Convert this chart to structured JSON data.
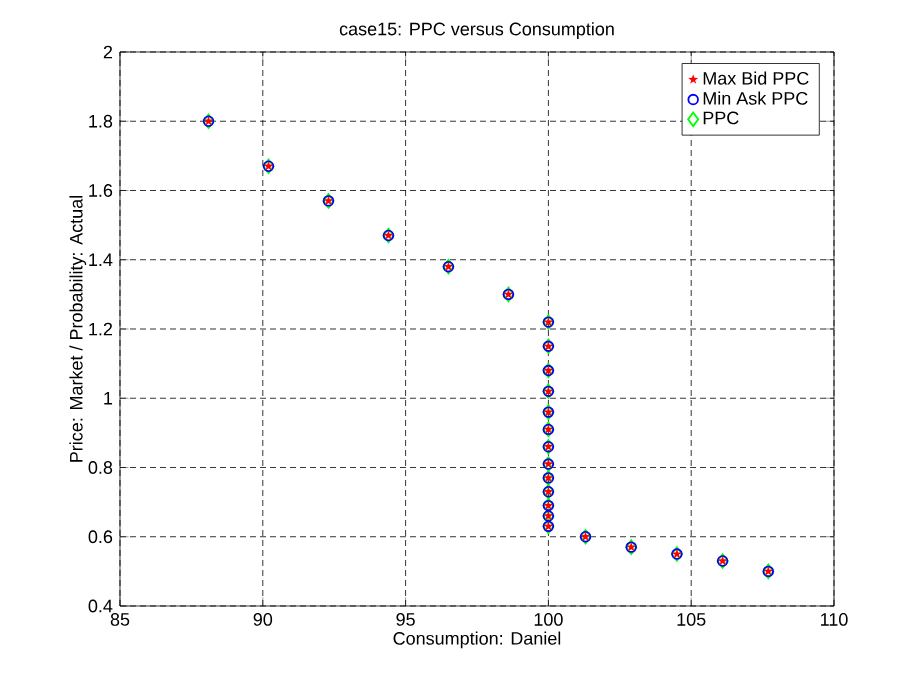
{
  "chart_data": {
    "type": "scatter",
    "title": "case15: PPC versus Consumption",
    "xlabel": "Consumption: Daniel",
    "ylabel": "Price: Market / Probability: Actual",
    "xlim": [
      85,
      110
    ],
    "xticks": [
      85,
      90,
      95,
      100,
      105,
      110
    ],
    "ylim": [
      0.4,
      2
    ],
    "yticks": [
      0.4,
      0.6,
      0.8,
      1,
      1.2,
      1.4,
      1.6,
      1.8,
      2
    ],
    "x": [
      88.1,
      90.2,
      92.3,
      94.4,
      96.5,
      98.6,
      100,
      100,
      100,
      100,
      100,
      100,
      100,
      100,
      100,
      100,
      100,
      100,
      100,
      101.3,
      102.9,
      104.5,
      106.1,
      107.7
    ],
    "series": [
      {
        "name": "Max Bid PPC",
        "color": "#ff0000",
        "marker": "star",
        "values": [
          1.8,
          1.67,
          1.57,
          1.47,
          1.38,
          1.3,
          1.22,
          1.15,
          1.08,
          1.02,
          0.96,
          0.91,
          0.86,
          0.81,
          0.77,
          0.73,
          0.69,
          0.66,
          0.63,
          0.6,
          0.57,
          0.55,
          0.53,
          0.5
        ]
      },
      {
        "name": "Min Ask PPC",
        "color": "#0000ff",
        "marker": "circle",
        "values": [
          1.8,
          1.67,
          1.57,
          1.47,
          1.38,
          1.3,
          1.22,
          1.15,
          1.08,
          1.02,
          0.96,
          0.91,
          0.86,
          0.81,
          0.77,
          0.73,
          0.69,
          0.66,
          0.63,
          0.6,
          0.57,
          0.55,
          0.53,
          0.5
        ]
      },
      {
        "name": "PPC",
        "color": "#00ff00",
        "marker": "diamond",
        "values": [
          1.8,
          1.67,
          1.57,
          1.47,
          1.38,
          1.3,
          1.22,
          1.15,
          1.08,
          1.02,
          0.96,
          0.91,
          0.86,
          0.81,
          0.77,
          0.73,
          0.69,
          0.66,
          0.63,
          0.6,
          0.57,
          0.55,
          0.53,
          0.5
        ]
      }
    ],
    "grid": true,
    "legend": "top right"
  }
}
